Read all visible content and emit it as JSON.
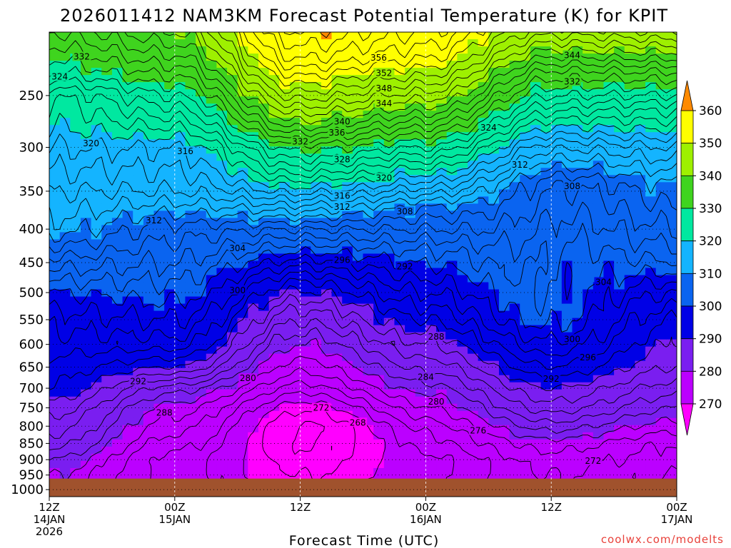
{
  "title": "2026011412 NAM3KM Forecast Potential Temperature (K) for KPIT",
  "credit": "coolwx.com/modelts",
  "credit_color": "#e8413a",
  "chart_data": {
    "type": "heatmap",
    "xlabel": "Forecast Time (UTC)",
    "x_ticks": [
      {
        "hour": 0,
        "lines": [
          "12Z",
          "14JAN",
          "2026"
        ]
      },
      {
        "hour": 12,
        "lines": [
          "00Z",
          "15JAN"
        ]
      },
      {
        "hour": 24,
        "lines": [
          "12Z"
        ]
      },
      {
        "hour": 36,
        "lines": [
          "00Z",
          "16JAN"
        ]
      },
      {
        "hour": 48,
        "lines": [
          "12Z"
        ]
      },
      {
        "hour": 60,
        "lines": [
          "00Z",
          "17JAN"
        ]
      }
    ],
    "xlim": [
      0,
      60
    ],
    "y_ticks": [
      250,
      300,
      350,
      400,
      450,
      500,
      550,
      600,
      650,
      700,
      750,
      800,
      850,
      900,
      950,
      1000
    ],
    "ylim": [
      200,
      1025
    ],
    "y_scale": "log-pressure",
    "surface_pressure": 962,
    "surface_color": "#a0522d",
    "colorbar": {
      "levels": [
        270,
        280,
        290,
        300,
        310,
        320,
        330,
        340,
        350,
        360
      ],
      "colors": [
        "#ff00ff",
        "#bb00ff",
        "#7a1ef0",
        "#0000e6",
        "#0a64f0",
        "#14b4ff",
        "#00e8a0",
        "#3fd41e",
        "#9ef000",
        "#ffff00",
        "#ffc000",
        "#ff8a00"
      ]
    },
    "contour_interval": 2,
    "contour_labels": [
      {
        "v": 332,
        "h": 3.1,
        "p": 218
      },
      {
        "v": 324,
        "h": 1.0,
        "p": 234
      },
      {
        "v": 320,
        "h": 4.0,
        "p": 296
      },
      {
        "v": 316,
        "h": 13.0,
        "p": 304
      },
      {
        "v": 312,
        "h": 10.0,
        "p": 388
      },
      {
        "v": 304,
        "h": 18.0,
        "p": 428
      },
      {
        "v": 300,
        "h": 18.0,
        "p": 496
      },
      {
        "v": 292,
        "h": 8.5,
        "p": 683
      },
      {
        "v": 288,
        "h": 11.0,
        "p": 763
      },
      {
        "v": 280,
        "h": 19.0,
        "p": 676
      },
      {
        "v": 272,
        "h": 26.0,
        "p": 750
      },
      {
        "v": 268,
        "h": 29.5,
        "p": 790
      },
      {
        "v": 356,
        "h": 31.5,
        "p": 219
      },
      {
        "v": 352,
        "h": 32.0,
        "p": 231
      },
      {
        "v": 348,
        "h": 32.0,
        "p": 244
      },
      {
        "v": 344,
        "h": 32.0,
        "p": 257
      },
      {
        "v": 340,
        "h": 28.0,
        "p": 274
      },
      {
        "v": 336,
        "h": 27.5,
        "p": 285
      },
      {
        "v": 332,
        "h": 24.0,
        "p": 294
      },
      {
        "v": 328,
        "h": 28.0,
        "p": 313
      },
      {
        "v": 320,
        "h": 32.0,
        "p": 334
      },
      {
        "v": 316,
        "h": 28.0,
        "p": 356
      },
      {
        "v": 312,
        "h": 28.0,
        "p": 370
      },
      {
        "v": 308,
        "h": 34.0,
        "p": 376
      },
      {
        "v": 296,
        "h": 28.0,
        "p": 446
      },
      {
        "v": 292,
        "h": 34.0,
        "p": 456
      },
      {
        "v": 288,
        "h": 37.0,
        "p": 584
      },
      {
        "v": 284,
        "h": 36.0,
        "p": 673
      },
      {
        "v": 280,
        "h": 37.0,
        "p": 734
      },
      {
        "v": 276,
        "h": 41.0,
        "p": 813
      },
      {
        "v": 344,
        "h": 50.0,
        "p": 217
      },
      {
        "v": 332,
        "h": 50.0,
        "p": 238
      },
      {
        "v": 324,
        "h": 42.0,
        "p": 280
      },
      {
        "v": 312,
        "h": 45.0,
        "p": 319
      },
      {
        "v": 308,
        "h": 50.0,
        "p": 344
      },
      {
        "v": 304,
        "h": 53.0,
        "p": 482
      },
      {
        "v": 300,
        "h": 50.0,
        "p": 589
      },
      {
        "v": 296,
        "h": 51.5,
        "p": 628
      },
      {
        "v": 292,
        "h": 48.0,
        "p": 677
      },
      {
        "v": 272,
        "h": 52.0,
        "p": 904
      }
    ]
  }
}
